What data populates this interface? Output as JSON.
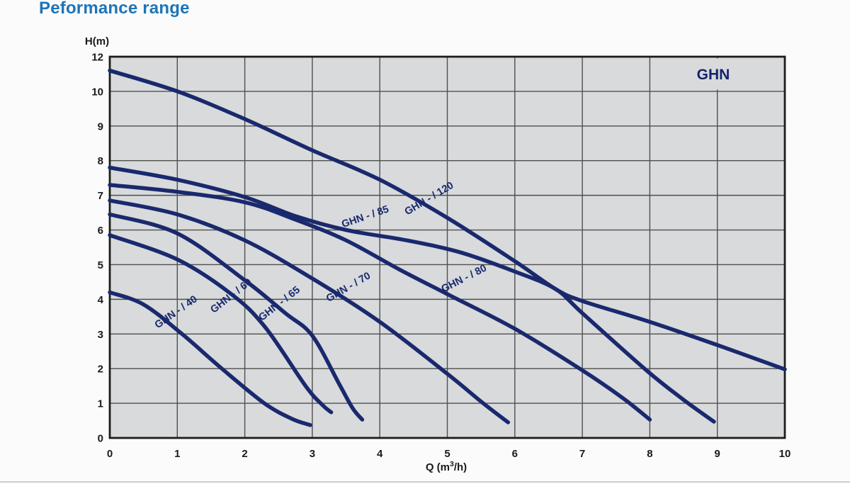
{
  "page": {
    "title": "Peformance range"
  },
  "colors": {
    "title": "#1c74b8",
    "curve": "#1a296d",
    "corner_label": "#15236b",
    "plot_bg": "#d8dadc",
    "grid": "#4f4f4f",
    "border": "#1c1c1c",
    "tick_text": "#1a1a1a",
    "page_bg": "#fbfbfb",
    "bottom_rule": "#cfcfcf"
  },
  "chart_data": {
    "type": "line",
    "title": "Peformance range",
    "corner_label": "GHN",
    "ylabel": "H(m)",
    "xlabel": "Q (m3/h)",
    "xlabel_parts": [
      "Q (m",
      "3",
      "/h)"
    ],
    "x_ticks": [
      "0",
      "1",
      "2",
      "3",
      "4",
      "5",
      "6",
      "7",
      "8",
      "9",
      "10"
    ],
    "x_range": [
      0,
      10
    ],
    "y_tick_labels": [
      "12",
      "10",
      "9",
      "8",
      "7",
      "6",
      "5",
      "4",
      "3",
      "2",
      "1",
      "0"
    ],
    "y_axis_note": "12 evenly spaced gridlines; top border labeled 12, lower lines at 1 m steps from 10 down to 0",
    "grid": true,
    "legend_position": "labels-on-curves",
    "series": [
      {
        "name": "GHN - / 120",
        "label": {
          "x": 608,
          "y": 284,
          "angle": -31
        },
        "points": [
          [
            0,
            10.6
          ],
          [
            1,
            10.0
          ],
          [
            2,
            9.2
          ],
          [
            3,
            8.3
          ],
          [
            4,
            7.45
          ],
          [
            5,
            6.35
          ],
          [
            6,
            5.1
          ],
          [
            6.6,
            4.3
          ],
          [
            7,
            3.95
          ],
          [
            8,
            3.35
          ],
          [
            9,
            2.68
          ],
          [
            10,
            1.98
          ]
        ]
      },
      {
        "name": "GHN - / 85",
        "label": {
          "x": 517,
          "y": 310,
          "angle": -19
        },
        "points": [
          [
            0,
            7.8
          ],
          [
            1,
            7.45
          ],
          [
            2,
            6.95
          ],
          [
            2.75,
            6.4
          ],
          [
            3.5,
            6.0
          ],
          [
            4.4,
            5.7
          ],
          [
            5.2,
            5.35
          ],
          [
            6,
            4.8
          ],
          [
            6.6,
            4.3
          ],
          [
            7,
            3.6
          ],
          [
            7.95,
            1.95
          ],
          [
            8.5,
            1.1
          ],
          [
            8.95,
            0.47
          ]
        ]
      },
      {
        "name": "GHN - / 80",
        "label": {
          "x": 657,
          "y": 397,
          "angle": -27
        },
        "points": [
          [
            0,
            7.3
          ],
          [
            1,
            7.1
          ],
          [
            2,
            6.8
          ],
          [
            2.75,
            6.3
          ],
          [
            3.5,
            5.7
          ],
          [
            4.3,
            4.85
          ],
          [
            5,
            4.15
          ],
          [
            6,
            3.15
          ],
          [
            7,
            1.95
          ],
          [
            7.6,
            1.15
          ],
          [
            8,
            0.53
          ]
        ]
      },
      {
        "name": "GHN - / 70",
        "label": {
          "x": 494,
          "y": 409,
          "angle": -30
        },
        "points": [
          [
            0,
            6.85
          ],
          [
            1,
            6.45
          ],
          [
            2,
            5.7
          ],
          [
            3,
            4.6
          ],
          [
            4,
            3.35
          ],
          [
            5,
            1.85
          ],
          [
            5.5,
            1.05
          ],
          [
            5.9,
            0.45
          ]
        ]
      },
      {
        "name": "GHN - / 65",
        "label": {
          "x": 397,
          "y": 432,
          "angle": -38
        },
        "points": [
          [
            0,
            6.45
          ],
          [
            1,
            5.9
          ],
          [
            2,
            4.55
          ],
          [
            2.6,
            3.6
          ],
          [
            3,
            2.95
          ],
          [
            3.4,
            1.55
          ],
          [
            3.6,
            0.85
          ],
          [
            3.74,
            0.53
          ]
        ]
      },
      {
        "name": "GHN - / 60",
        "label": {
          "x": 329,
          "y": 421,
          "angle": -38
        },
        "points": [
          [
            0,
            5.85
          ],
          [
            1,
            5.15
          ],
          [
            1.8,
            4.15
          ],
          [
            2.3,
            3.2
          ],
          [
            2.9,
            1.5
          ],
          [
            3.15,
            0.95
          ],
          [
            3.28,
            0.74
          ]
        ]
      },
      {
        "name": "GHN - / 40",
        "label": {
          "x": 251,
          "y": 444,
          "angle": -35
        },
        "points": [
          [
            0,
            4.2
          ],
          [
            0.5,
            3.85
          ],
          [
            1.07,
            3.0
          ],
          [
            1.66,
            2.0
          ],
          [
            2.29,
            1.0
          ],
          [
            2.7,
            0.55
          ],
          [
            2.97,
            0.37
          ]
        ]
      }
    ]
  }
}
